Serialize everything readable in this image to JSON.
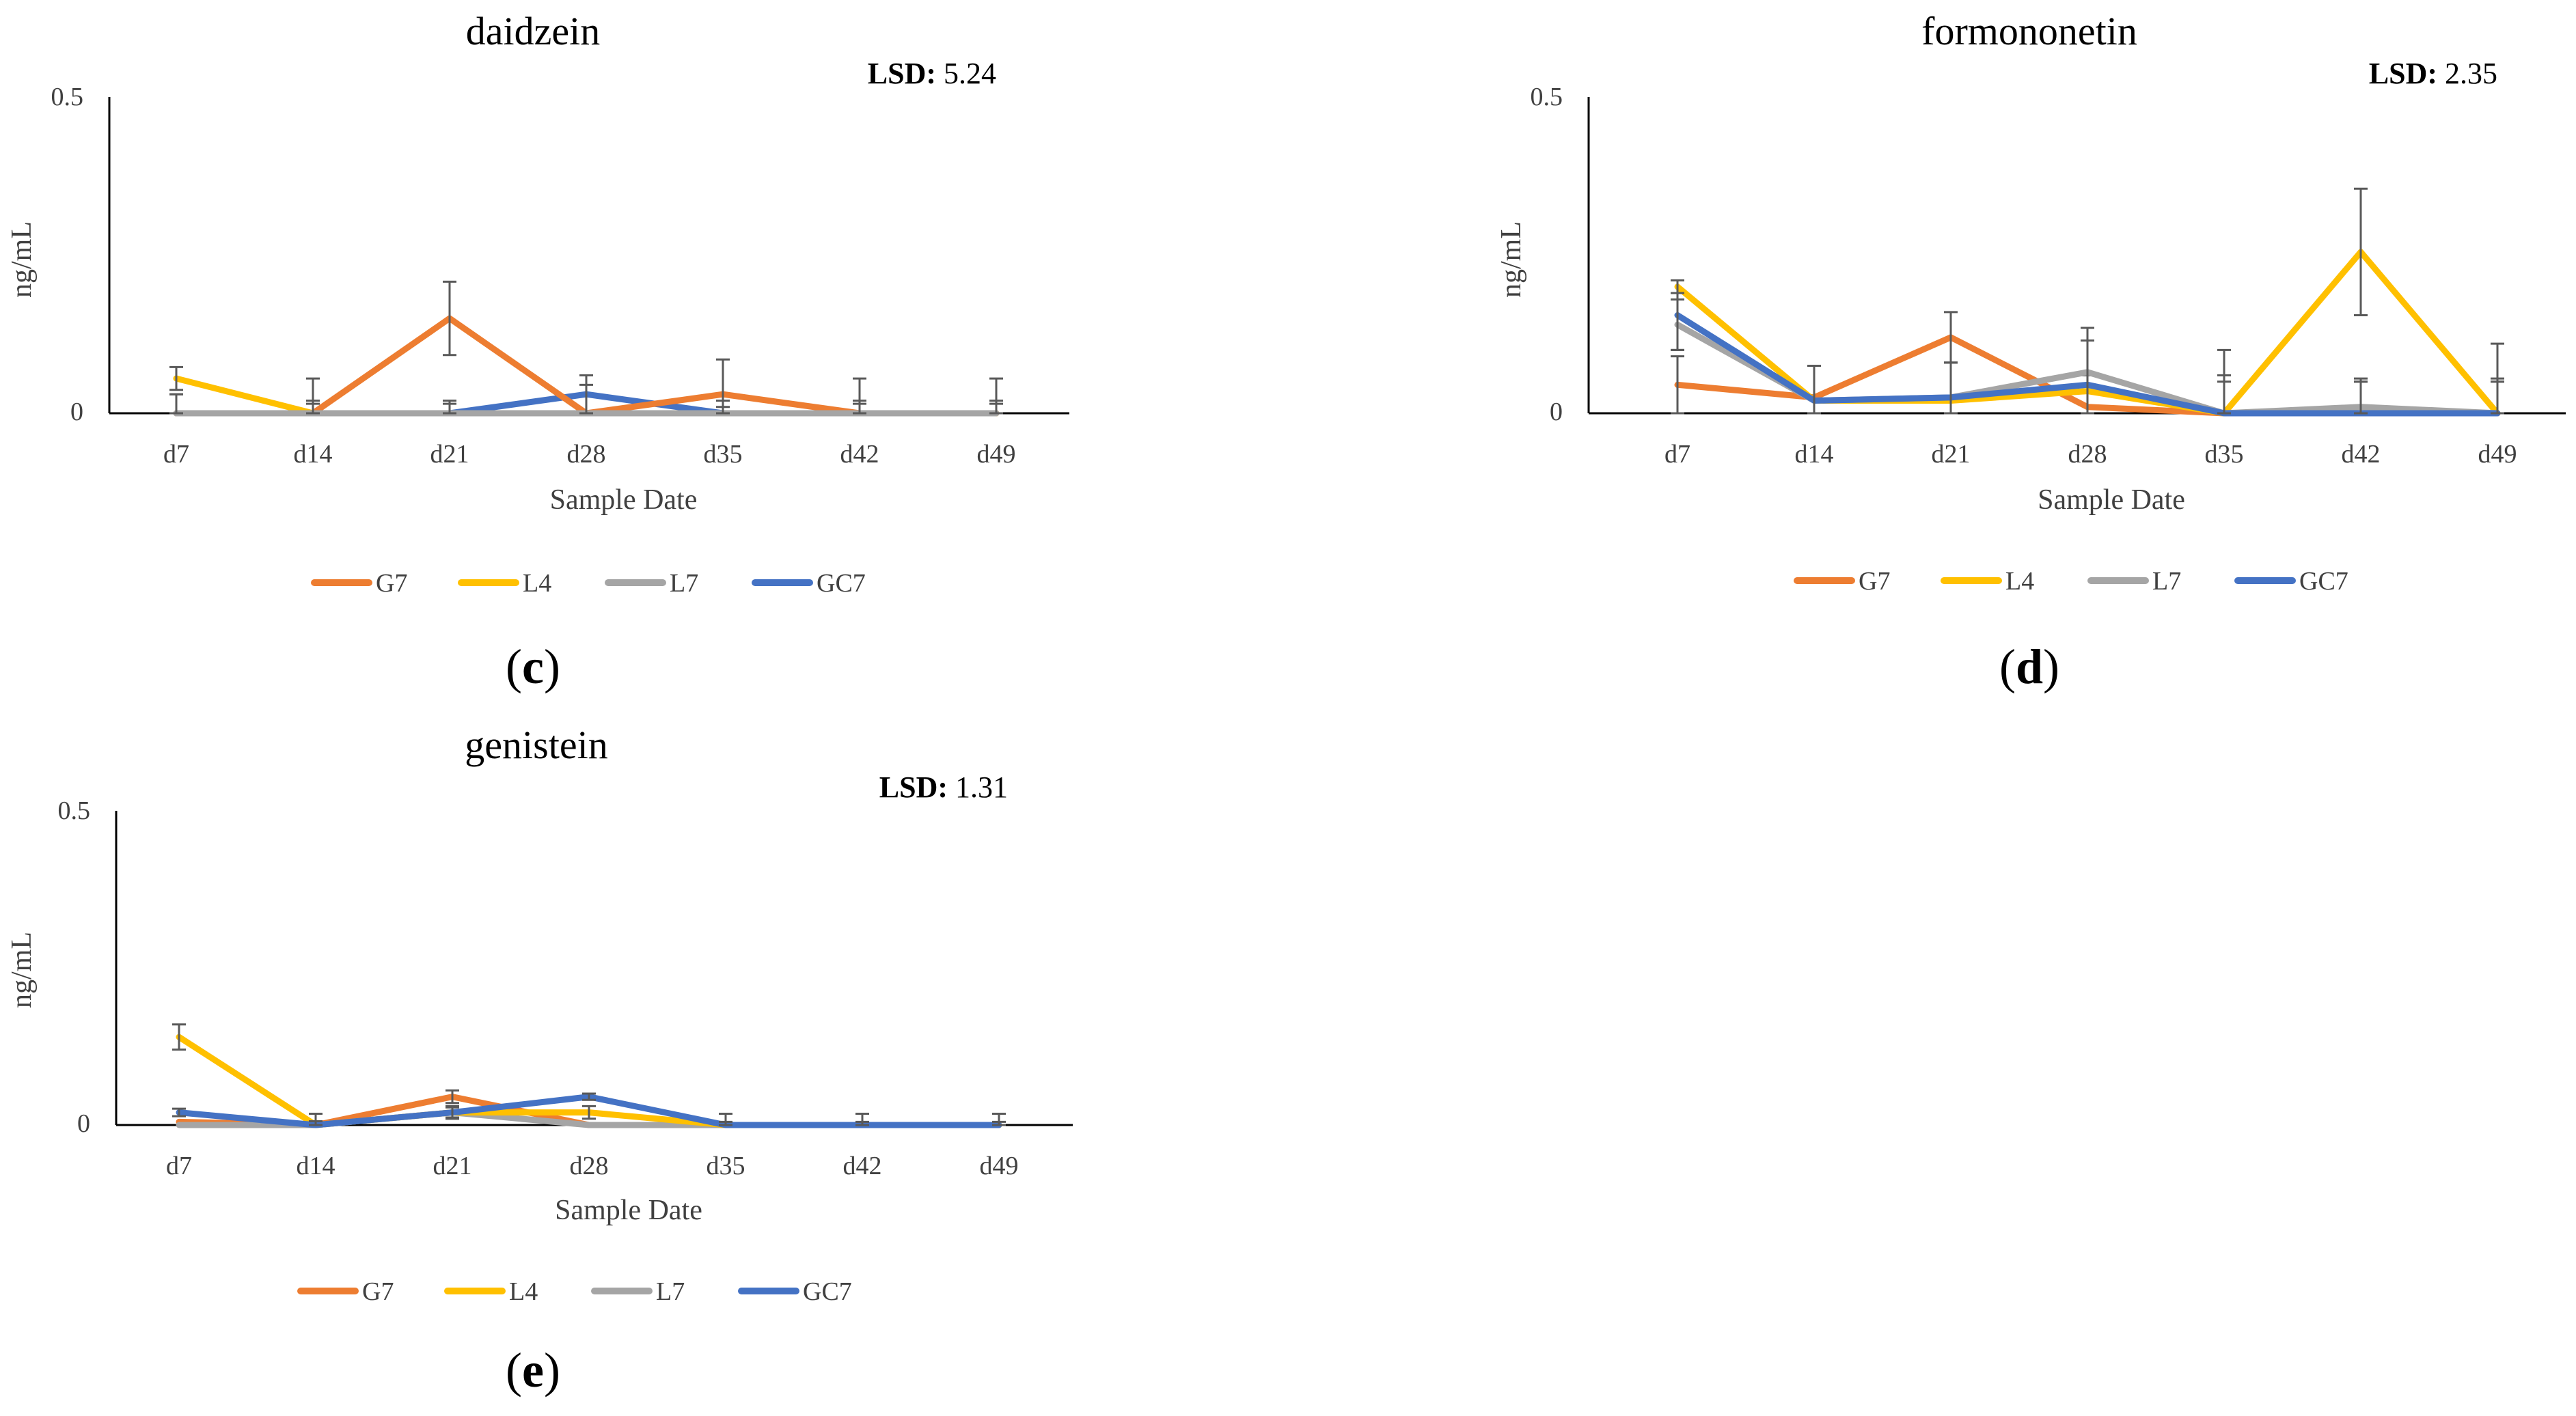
{
  "colors": {
    "G7": "#ED7D31",
    "L4": "#FFC000",
    "L7": "#A5A5A5",
    "GC7": "#4472C4",
    "axis": "#000000",
    "text": "#404040",
    "errorbar": "#595959"
  },
  "chart_data": [
    {
      "type": "line",
      "panel": "(c)",
      "title": "daidzein",
      "lsd_label": "LSD:",
      "lsd_value": "5.24",
      "xlabel": "Sample Date",
      "ylabel": "ng/mL",
      "ylim": [
        0,
        0.5
      ],
      "yticks": [
        "0",
        "0.5"
      ],
      "categories": [
        "d7",
        "d14",
        "d21",
        "d28",
        "d35",
        "d42",
        "d49"
      ],
      "series": [
        {
          "name": "GC7",
          "values": [
            0,
            0,
            0,
            0.03,
            0,
            0,
            0
          ],
          "err": [
            0.03,
            0.02,
            0.02,
            0.03,
            0.02,
            0.02,
            0.02
          ]
        },
        {
          "name": "G7",
          "values": [
            0,
            0,
            0.15,
            0,
            0.03,
            0,
            0
          ],
          "err": [
            0,
            0,
            0.058,
            0,
            0.055,
            0.055,
            0.055
          ]
        },
        {
          "name": "L4",
          "values": [
            0.055,
            0,
            0,
            0,
            0,
            0,
            0
          ],
          "err": [
            0.018,
            0.055,
            0,
            0,
            0,
            0,
            0
          ]
        },
        {
          "name": "L7",
          "values": [
            0,
            0,
            0,
            0,
            0,
            0,
            0
          ],
          "err": [
            0.03,
            0.015,
            0.015,
            0.045,
            0.01,
            0.015,
            0.015
          ]
        }
      ]
    },
    {
      "type": "line",
      "panel": "(d)",
      "title": "formononetin",
      "lsd_label": "LSD:",
      "lsd_value": "2.35",
      "xlabel": "Sample Date",
      "ylabel": "ng/mL",
      "ylim": [
        0,
        0.5
      ],
      "yticks": [
        "0",
        "0.5"
      ],
      "categories": [
        "d7",
        "d14",
        "d21",
        "d28",
        "d35",
        "d42",
        "d49"
      ],
      "series": [
        {
          "name": "G7",
          "values": [
            0.045,
            0.025,
            0.12,
            0.01,
            0,
            0,
            0
          ],
          "err": [
            0.045,
            0.05,
            0.04,
            0.05,
            0.05,
            0.05,
            0.05
          ]
        },
        {
          "name": "L4",
          "values": [
            0.2,
            0.02,
            0.02,
            0.035,
            0,
            0.255,
            0
          ],
          "err": [
            0.01,
            0.055,
            0.06,
            0.1,
            0.1,
            0.1,
            0.11
          ]
        },
        {
          "name": "L7",
          "values": [
            0.14,
            0.02,
            0.025,
            0.065,
            0,
            0.01,
            0
          ],
          "err": [
            0.04,
            0.055,
            0.055,
            0.07,
            0.06,
            0.045,
            0.055
          ]
        },
        {
          "name": "GC7",
          "values": [
            0.155,
            0.02,
            0.025,
            0.045,
            0,
            0,
            0
          ],
          "err": [
            0.055,
            0.055,
            0.055,
            0.07,
            0.06,
            0.05,
            0.05
          ]
        }
      ]
    },
    {
      "type": "line",
      "panel": "(e)",
      "title": "genistein",
      "lsd_label": "LSD:",
      "lsd_value": "1.31",
      "xlabel": "Sample Date",
      "ylabel": "ng/mL",
      "ylim": [
        0,
        0.5
      ],
      "yticks": [
        "0",
        "0.5"
      ],
      "categories": [
        "d7",
        "d14",
        "d21",
        "d28",
        "d35",
        "d42",
        "d49"
      ],
      "series": [
        {
          "name": "G7",
          "values": [
            0.005,
            0,
            0.045,
            0,
            0,
            0,
            0
          ],
          "err": [
            0,
            0,
            0.01,
            0,
            0,
            0,
            0
          ]
        },
        {
          "name": "L7",
          "values": [
            0,
            0,
            0.02,
            0,
            0,
            0,
            0
          ],
          "err": [
            0,
            0,
            0.01,
            0,
            0,
            0,
            0
          ]
        },
        {
          "name": "L4",
          "values": [
            0.14,
            0,
            0.02,
            0.02,
            0,
            0,
            0
          ],
          "err": [
            0.02,
            0.018,
            0.01,
            0.01,
            0.018,
            0.018,
            0.018
          ]
        },
        {
          "name": "GC7",
          "values": [
            0.02,
            0,
            0.02,
            0.045,
            0,
            0,
            0
          ],
          "err": [
            0.006,
            0.006,
            0.008,
            0.005,
            0.005,
            0.005,
            0.005
          ]
        }
      ]
    }
  ]
}
